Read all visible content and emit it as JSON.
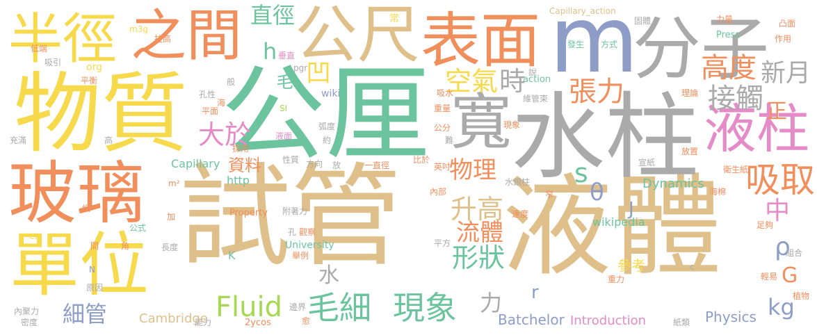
{
  "palette": {
    "yellow": "#f7d94c",
    "orange": "#f08e5c",
    "green": "#6cc49f",
    "beige": "#dfc08a",
    "gray": "#aaaaaa",
    "blue": "#8d9dc8",
    "pink": "#e48bc8",
    "lime": "#a6d854"
  },
  "words": [
    {
      "t": "試管",
      "c": "#dfc08a"
    },
    {
      "t": "液體",
      "c": "#dfc08a"
    },
    {
      "t": "公厘",
      "c": "#6cc49f"
    },
    {
      "t": "物質",
      "c": "#f7d94c"
    },
    {
      "t": "水柱",
      "c": "#aaaaaa"
    },
    {
      "t": "m",
      "c": "#8d9dc8"
    },
    {
      "t": "分子",
      "c": "#aaaaaa"
    },
    {
      "t": "玻璃",
      "c": "#f08e5c"
    },
    {
      "t": "單位",
      "c": "#f7d94c"
    },
    {
      "t": "表面",
      "c": "#f08e5c"
    },
    {
      "t": "公尺",
      "c": "#dfc08a"
    },
    {
      "t": "之間",
      "c": "#f08e5c"
    },
    {
      "t": "半徑",
      "c": "#f7d94c"
    },
    {
      "t": "寬",
      "c": "#aaaaaa"
    },
    {
      "t": "液柱",
      "c": "#e48bc8"
    },
    {
      "t": "接觸",
      "c": "#aaaaaa"
    },
    {
      "t": "高度",
      "c": "#f08e5c"
    },
    {
      "t": "新月",
      "c": "#aaaaaa"
    },
    {
      "t": "吸取",
      "c": "#f08e5c"
    },
    {
      "t": "空氣",
      "c": "#f7d94c"
    },
    {
      "t": "時",
      "c": "#aaaaaa"
    },
    {
      "t": "張力",
      "c": "#f08e5c"
    },
    {
      "t": "大於",
      "c": "#e48bc8"
    },
    {
      "t": "直徑",
      "c": "#6cc49f"
    },
    {
      "t": "凹",
      "c": "#f7d94c"
    },
    {
      "t": "h",
      "c": "#6cc49f"
    },
    {
      "t": "毛",
      "c": "#6cc49f"
    },
    {
      "t": "資料",
      "c": "#f08e5c"
    },
    {
      "t": "物理",
      "c": "#f08e5c"
    },
    {
      "t": "升高",
      "c": "#dfc08a"
    },
    {
      "t": "s",
      "c": "#6cc49f"
    },
    {
      "t": "θ",
      "c": "#8d9dc8"
    },
    {
      "t": "流體",
      "c": "#f08e5c"
    },
    {
      "t": "形狀",
      "c": "#6cc49f"
    },
    {
      "t": "毛細",
      "c": "#6cc49f"
    },
    {
      "t": "現象",
      "c": "#6cc49f"
    },
    {
      "t": "Fluid",
      "c": "#a6d854"
    },
    {
      "t": "細管",
      "c": "#8d9dc8"
    },
    {
      "t": "水",
      "c": "#aaaaaa"
    },
    {
      "t": "力",
      "c": "#aaaaaa"
    },
    {
      "t": "中",
      "c": "#e48bc8"
    },
    {
      "t": "ρ",
      "c": "#8d9dc8"
    },
    {
      "t": "正",
      "c": "#f08e5c"
    },
    {
      "t": "kg",
      "c": "#8d9dc8"
    },
    {
      "t": "G",
      "c": "#f08e5c"
    },
    {
      "t": "J",
      "c": "#8d9dc8"
    },
    {
      "t": "r",
      "c": "#8d9dc8"
    },
    {
      "t": "Dynamics",
      "c": "#6cc49f"
    },
    {
      "t": "Physics",
      "c": "#8d9dc8"
    },
    {
      "t": "Batchelor",
      "c": "#8d9dc8"
    },
    {
      "t": "Introduction",
      "c": "#e48bc8"
    },
    {
      "t": "Cambridge",
      "c": "#dfc08a"
    },
    {
      "t": "University",
      "c": "#6cc49f"
    },
    {
      "t": "wikipedia",
      "c": "#6cc49f"
    },
    {
      "t": "Capillary",
      "c": "#6cc49f"
    },
    {
      "t": "http",
      "c": "#6cc49f"
    },
    {
      "t": "action",
      "c": "#6cc49f"
    },
    {
      "t": "Press",
      "c": "#6cc49f"
    },
    {
      "t": "Property",
      "c": "#f08e5c"
    },
    {
      "t": "Capillary_action",
      "c": "#dfc08a"
    },
    {
      "t": "2ycos",
      "c": "#f08e5c"
    },
    {
      "t": "en",
      "c": "#f7d94c"
    },
    {
      "t": "K",
      "c": "#6cc49f"
    },
    {
      "t": "參考",
      "c": "#f7d94c"
    },
    {
      "t": "重力",
      "c": "#f08e5c"
    },
    {
      "t": "wiki",
      "c": "#8d9dc8"
    },
    {
      "t": "org",
      "c": "#f7d94c"
    },
    {
      "t": "m3g",
      "c": "#f7d94c"
    },
    {
      "t": "pgr",
      "c": "#aaaaaa"
    },
    {
      "t": "SI",
      "c": "#a6d854"
    },
    {
      "t": "常",
      "c": "#f7d94c"
    },
    {
      "t": "拉高",
      "c": "#f08e5c"
    },
    {
      "t": "垂直",
      "c": "#e48bc8"
    },
    {
      "t": "低端",
      "c": "#f08e5c"
    },
    {
      "t": "吸引",
      "c": "#aaaaaa"
    },
    {
      "t": "平衡",
      "c": "#f08e5c"
    },
    {
      "t": "孔性",
      "c": "#aaaaaa"
    },
    {
      "t": "平面",
      "c": "#f08e5c"
    },
    {
      "t": "海",
      "c": "#f08e5c"
    },
    {
      "t": "般",
      "c": "#aaaaaa"
    },
    {
      "t": "說",
      "c": "#aaaaaa"
    },
    {
      "t": "吸水",
      "c": "#f08e5c"
    },
    {
      "t": "重量",
      "c": "#f08e5c"
    },
    {
      "t": "維管束",
      "c": "#aaaaaa"
    },
    {
      "t": "理論",
      "c": "#f08e5c"
    },
    {
      "t": "發生",
      "c": "#6cc49f"
    },
    {
      "t": "方式",
      "c": "#6cc49f"
    },
    {
      "t": "固體",
      "c": "#aaaaaa"
    },
    {
      "t": "力量",
      "c": "#f08e5c"
    },
    {
      "t": "凸面",
      "c": "#f08e5c"
    },
    {
      "t": "作用",
      "c": "#f08e5c"
    },
    {
      "t": "充滿",
      "c": "#aaaaaa"
    },
    {
      "t": "高",
      "c": "#aaaaaa"
    },
    {
      "t": "液面",
      "c": "#e48bc8"
    },
    {
      "t": "弧度",
      "c": "#aaaaaa"
    },
    {
      "t": "約",
      "c": "#aaaaaa"
    },
    {
      "t": "公分",
      "c": "#f08e5c"
    },
    {
      "t": "難",
      "c": "#aaaaaa"
    },
    {
      "t": "現象",
      "c": "#f08e5c"
    },
    {
      "t": "採用",
      "c": "#f08e5c"
    },
    {
      "t": "性質",
      "c": "#aaaaaa"
    },
    {
      "t": "方向",
      "c": "#aaaaaa"
    },
    {
      "t": "放",
      "c": "#aaaaaa"
    },
    {
      "t": "一直徑",
      "c": "#f08e5c"
    },
    {
      "t": "比於",
      "c": "#f08e5c"
    },
    {
      "t": "英吋",
      "c": "#f08e5c"
    },
    {
      "t": "宣紙",
      "c": "#aaaaaa"
    },
    {
      "t": "放置",
      "c": "#f08e5c"
    },
    {
      "t": "衛生紙",
      "c": "#f08e5c"
    },
    {
      "t": "海棉",
      "c": "#f08e5c"
    },
    {
      "t": "內部",
      "c": "#f08e5c"
    },
    {
      "t": "水銀柱",
      "c": "#aaaaaa"
    },
    {
      "t": "窄",
      "c": "#f08e5c"
    },
    {
      "t": "m²",
      "c": "#f08e5c"
    },
    {
      "t": "細",
      "c": "#f08e5c"
    },
    {
      "t": "加",
      "c": "#f08e5c"
    },
    {
      "t": "公式",
      "c": "#6cc49f"
    },
    {
      "t": "附著力",
      "c": "#aaaaaa"
    },
    {
      "t": "速度",
      "c": "#f08e5c"
    },
    {
      "t": "孔",
      "c": "#aaaaaa"
    },
    {
      "t": "觀察",
      "c": "#f08e5c"
    },
    {
      "t": "平方",
      "c": "#aaaaaa"
    },
    {
      "t": "間",
      "c": "#f08e5c"
    },
    {
      "t": "角",
      "c": "#f08e5c"
    },
    {
      "t": "長度",
      "c": "#aaaaaa"
    },
    {
      "t": "舉例",
      "c": "#f08e5c"
    },
    {
      "t": "N",
      "c": "#8d9dc8"
    },
    {
      "t": "原因",
      "c": "#aaaaaa"
    },
    {
      "t": "內聚力",
      "c": "#aaaaaa"
    },
    {
      "t": "密度",
      "c": "#aaaaaa"
    },
    {
      "t": "能力",
      "c": "#aaaaaa"
    },
    {
      "t": "邊界",
      "c": "#aaaaaa"
    },
    {
      "t": "愈",
      "c": "#f08e5c"
    },
    {
      "t": "紙類",
      "c": "#aaaaaa"
    },
    {
      "t": "c",
      "c": "#aaaaaa"
    },
    {
      "t": "組合",
      "c": "#aaaaaa"
    },
    {
      "t": "足夠",
      "c": "#f08e5c"
    },
    {
      "t": "輕易",
      "c": "#f08e5c"
    },
    {
      "t": "植物",
      "c": "#f08e5c"
    }
  ]
}
